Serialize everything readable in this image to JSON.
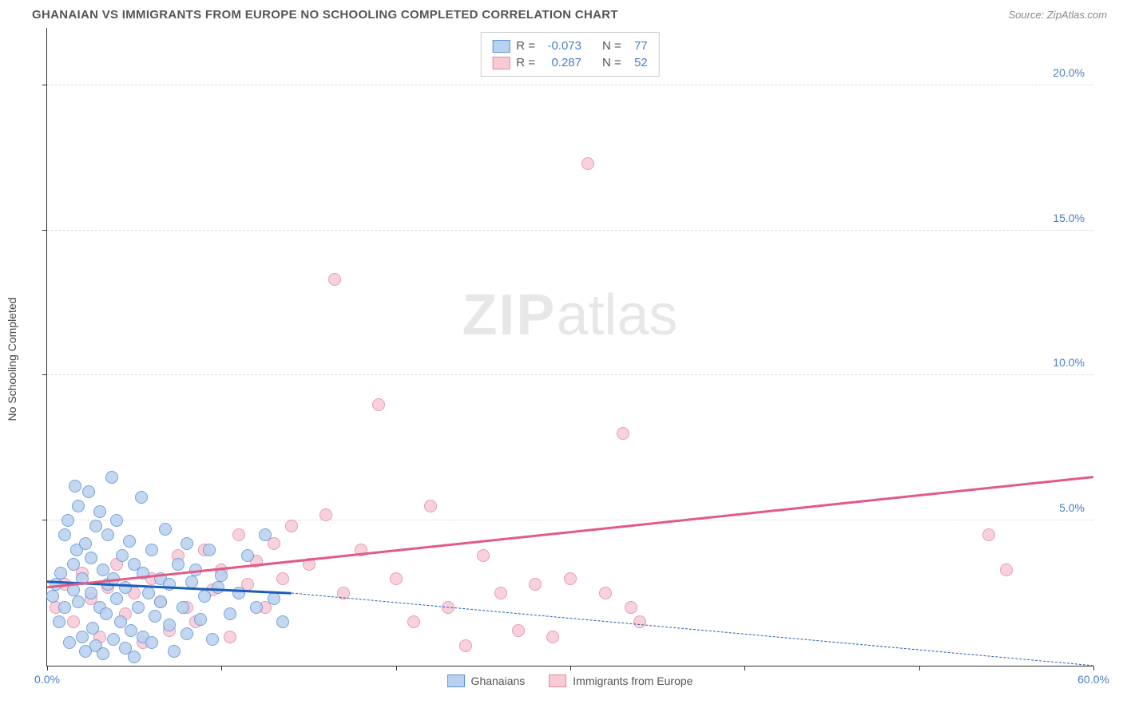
{
  "header": {
    "title": "GHANAIAN VS IMMIGRANTS FROM EUROPE NO SCHOOLING COMPLETED CORRELATION CHART",
    "source_prefix": "Source: ",
    "source_name": "ZipAtlas.com"
  },
  "chart": {
    "type": "scatter",
    "y_axis_label": "No Schooling Completed",
    "watermark_bold": "ZIP",
    "watermark_light": "atlas",
    "xlim": [
      0,
      60
    ],
    "ylim": [
      0,
      22
    ],
    "x_ticks": [
      0,
      10,
      20,
      30,
      40,
      50,
      60
    ],
    "x_tick_labels": {
      "0": "0.0%",
      "60": "60.0%"
    },
    "y_ticks": [
      5,
      10,
      15,
      20
    ],
    "y_tick_labels": {
      "5": "5.0%",
      "10": "10.0%",
      "15": "15.0%",
      "20": "20.0%"
    },
    "grid_color": "#dddddd",
    "axis_color": "#333333",
    "background_color": "#ffffff",
    "marker_radius": 8,
    "marker_stroke_width": 1,
    "series": [
      {
        "name": "Ghanaians",
        "fill": "#b9d1ee",
        "stroke": "#5c94d6",
        "stats": {
          "R": "-0.073",
          "N": "77"
        },
        "trend": {
          "x1": 0,
          "y1": 2.9,
          "x2": 14,
          "y2": 2.5,
          "color": "#1c5eb8",
          "width": 2.5,
          "dash_extend_x": 60,
          "dash_extend_y": 0.0
        },
        "points": [
          [
            0.3,
            2.4
          ],
          [
            0.5,
            2.8
          ],
          [
            0.7,
            1.5
          ],
          [
            0.8,
            3.2
          ],
          [
            1.0,
            2.0
          ],
          [
            1.0,
            4.5
          ],
          [
            1.2,
            5.0
          ],
          [
            1.3,
            0.8
          ],
          [
            1.5,
            3.5
          ],
          [
            1.5,
            2.6
          ],
          [
            1.6,
            6.2
          ],
          [
            1.7,
            4.0
          ],
          [
            1.8,
            2.2
          ],
          [
            1.8,
            5.5
          ],
          [
            2.0,
            3.0
          ],
          [
            2.0,
            1.0
          ],
          [
            2.2,
            0.5
          ],
          [
            2.2,
            4.2
          ],
          [
            2.4,
            6.0
          ],
          [
            2.5,
            2.5
          ],
          [
            2.5,
            3.7
          ],
          [
            2.6,
            1.3
          ],
          [
            2.8,
            4.8
          ],
          [
            2.8,
            0.7
          ],
          [
            3.0,
            2.0
          ],
          [
            3.0,
            5.3
          ],
          [
            3.2,
            0.4
          ],
          [
            3.2,
            3.3
          ],
          [
            3.4,
            1.8
          ],
          [
            3.5,
            4.5
          ],
          [
            3.5,
            2.8
          ],
          [
            3.7,
            6.5
          ],
          [
            3.8,
            0.9
          ],
          [
            3.8,
            3.0
          ],
          [
            4.0,
            2.3
          ],
          [
            4.0,
            5.0
          ],
          [
            4.2,
            1.5
          ],
          [
            4.3,
            3.8
          ],
          [
            4.5,
            0.6
          ],
          [
            4.5,
            2.7
          ],
          [
            4.7,
            4.3
          ],
          [
            4.8,
            1.2
          ],
          [
            5.0,
            3.5
          ],
          [
            5.0,
            0.3
          ],
          [
            5.2,
            2.0
          ],
          [
            5.4,
            5.8
          ],
          [
            5.5,
            1.0
          ],
          [
            5.5,
            3.2
          ],
          [
            5.8,
            2.5
          ],
          [
            6.0,
            4.0
          ],
          [
            6.0,
            0.8
          ],
          [
            6.2,
            1.7
          ],
          [
            6.5,
            3.0
          ],
          [
            6.5,
            2.2
          ],
          [
            6.8,
            4.7
          ],
          [
            7.0,
            1.4
          ],
          [
            7.0,
            2.8
          ],
          [
            7.3,
            0.5
          ],
          [
            7.5,
            3.5
          ],
          [
            7.8,
            2.0
          ],
          [
            8.0,
            1.1
          ],
          [
            8.0,
            4.2
          ],
          [
            8.3,
            2.9
          ],
          [
            8.5,
            3.3
          ],
          [
            8.8,
            1.6
          ],
          [
            9.0,
            2.4
          ],
          [
            9.3,
            4.0
          ],
          [
            9.5,
            0.9
          ],
          [
            9.8,
            2.7
          ],
          [
            10.0,
            3.1
          ],
          [
            10.5,
            1.8
          ],
          [
            11.0,
            2.5
          ],
          [
            11.5,
            3.8
          ],
          [
            12.0,
            2.0
          ],
          [
            12.5,
            4.5
          ],
          [
            13.0,
            2.3
          ],
          [
            13.5,
            1.5
          ]
        ]
      },
      {
        "name": "Immigrants from Europe",
        "fill": "#f6cbd6",
        "stroke": "#e58aa5",
        "stats": {
          "R": "0.287",
          "N": "52"
        },
        "trend": {
          "x1": 0,
          "y1": 2.7,
          "x2": 60,
          "y2": 6.5,
          "color": "#e35a82",
          "width": 2.5
        },
        "points": [
          [
            0.5,
            2.0
          ],
          [
            1.0,
            2.8
          ],
          [
            1.5,
            1.5
          ],
          [
            2.0,
            3.2
          ],
          [
            2.5,
            2.3
          ],
          [
            3.0,
            1.0
          ],
          [
            3.5,
            2.7
          ],
          [
            4.0,
            3.5
          ],
          [
            4.5,
            1.8
          ],
          [
            5.0,
            2.5
          ],
          [
            5.5,
            0.8
          ],
          [
            6.0,
            3.0
          ],
          [
            6.5,
            2.2
          ],
          [
            7.0,
            1.2
          ],
          [
            7.5,
            3.8
          ],
          [
            8.0,
            2.0
          ],
          [
            8.5,
            1.5
          ],
          [
            9.0,
            4.0
          ],
          [
            9.5,
            2.6
          ],
          [
            10.0,
            3.3
          ],
          [
            10.5,
            1.0
          ],
          [
            11.0,
            4.5
          ],
          [
            11.5,
            2.8
          ],
          [
            12.0,
            3.6
          ],
          [
            12.5,
            2.0
          ],
          [
            13.0,
            4.2
          ],
          [
            13.5,
            3.0
          ],
          [
            14.0,
            4.8
          ],
          [
            15.0,
            3.5
          ],
          [
            16.0,
            5.2
          ],
          [
            16.5,
            13.3
          ],
          [
            17.0,
            2.5
          ],
          [
            18.0,
            4.0
          ],
          [
            19.0,
            9.0
          ],
          [
            20.0,
            3.0
          ],
          [
            21.0,
            1.5
          ],
          [
            22.0,
            5.5
          ],
          [
            23.0,
            2.0
          ],
          [
            24.0,
            0.7
          ],
          [
            25.0,
            3.8
          ],
          [
            26.0,
            2.5
          ],
          [
            27.0,
            1.2
          ],
          [
            28.0,
            2.8
          ],
          [
            29.0,
            1.0
          ],
          [
            30.0,
            3.0
          ],
          [
            31.0,
            17.3
          ],
          [
            32.0,
            2.5
          ],
          [
            33.0,
            8.0
          ],
          [
            34.0,
            1.5
          ],
          [
            54.0,
            4.5
          ],
          [
            55.0,
            3.3
          ],
          [
            33.5,
            2.0
          ]
        ]
      }
    ],
    "bottom_legend": [
      "Ghanaians",
      "Immigrants from Europe"
    ],
    "stats_labels": {
      "R": "R =",
      "N": "N ="
    }
  }
}
